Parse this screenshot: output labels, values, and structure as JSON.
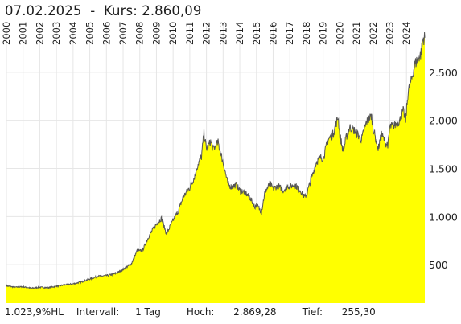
{
  "header": {
    "date": "07.02.2025",
    "separator": "-",
    "kurs_label": "Kurs:",
    "kurs_value": "2.860,09"
  },
  "footer": {
    "performance": "1.023,9%HL",
    "interval_label": "Intervall:",
    "interval_value": "1 Tag",
    "high_label": "Hoch:",
    "high_value": "2.869,28",
    "low_label": "Tief:",
    "low_value": "255,30"
  },
  "colors": {
    "fill": "#ffff00",
    "line": "#555555",
    "grid": "#e6e6e6",
    "text": "#222222"
  },
  "chart_data": {
    "type": "area",
    "x_tick_labels": [
      "2000",
      "2001",
      "2002",
      "2003",
      "2004",
      "2005",
      "2006",
      "2007",
      "2008",
      "2009",
      "2010",
      "2011",
      "2012",
      "2013",
      "2014",
      "2015",
      "2016",
      "2017",
      "2018",
      "2019",
      "2020",
      "2021",
      "2022",
      "2023",
      "2024"
    ],
    "y_tick_labels": [
      "500",
      "1.000",
      "1.500",
      "2.000",
      "2.500"
    ],
    "y_ticks": [
      500,
      1000,
      1500,
      2000,
      2500
    ],
    "ylim": [
      100,
      2950
    ],
    "xlim": [
      2000.0,
      2025.1
    ],
    "grid": true,
    "series": [
      {
        "x": [
          2000.0,
          2000.5,
          2001.0,
          2001.5,
          2002.0,
          2002.5,
          2003.0,
          2003.5,
          2004.0,
          2004.5,
          2005.0,
          2005.5,
          2006.0,
          2006.4,
          2006.7,
          2007.0,
          2007.5,
          2007.85,
          2008.0,
          2008.2,
          2008.5,
          2008.8,
          2009.0,
          2009.3,
          2009.6,
          2010.0,
          2010.3,
          2010.6,
          2010.9,
          2011.0,
          2011.3,
          2011.5,
          2011.7,
          2011.85,
          2012.0,
          2012.25,
          2012.4,
          2012.7,
          2013.0,
          2013.3,
          2013.5,
          2013.8,
          2014.0,
          2014.3,
          2014.6,
          2014.9,
          2015.0,
          2015.3,
          2015.5,
          2015.8,
          2016.0,
          2016.3,
          2016.6,
          2016.9,
          2017.0,
          2017.3,
          2017.6,
          2017.9,
          2018.0,
          2018.3,
          2018.6,
          2018.9,
          2019.0,
          2019.3,
          2019.6,
          2019.9,
          2020.0,
          2020.2,
          2020.4,
          2020.6,
          2020.9,
          2021.0,
          2021.3,
          2021.6,
          2021.9,
          2022.0,
          2022.3,
          2022.5,
          2022.75,
          2022.9,
          2023.0,
          2023.3,
          2023.6,
          2023.8,
          2023.95,
          2024.1,
          2024.3,
          2024.5,
          2024.7,
          2024.85,
          2025.0,
          2025.1
        ],
        "y": [
          280,
          265,
          270,
          255,
          265,
          260,
          275,
          290,
          300,
          320,
          350,
          380,
          385,
          400,
          420,
          450,
          510,
          650,
          640,
          660,
          780,
          870,
          920,
          980,
          820,
          960,
          1050,
          1200,
          1280,
          1300,
          1420,
          1550,
          1620,
          1870,
          1700,
          1780,
          1700,
          1770,
          1560,
          1330,
          1310,
          1330,
          1270,
          1250,
          1200,
          1100,
          1120,
          1050,
          1250,
          1340,
          1290,
          1320,
          1270,
          1320,
          1310,
          1330,
          1280,
          1200,
          1230,
          1400,
          1570,
          1620,
          1600,
          1800,
          1860,
          2040,
          1850,
          1680,
          1830,
          1930,
          1890,
          1870,
          1800,
          1980,
          2050,
          1920,
          1700,
          1860,
          1760,
          1750,
          1930,
          1950,
          2000,
          2100,
          2000,
          2300,
          2420,
          2580,
          2650,
          2680,
          2850,
          2860
        ]
      }
    ]
  }
}
